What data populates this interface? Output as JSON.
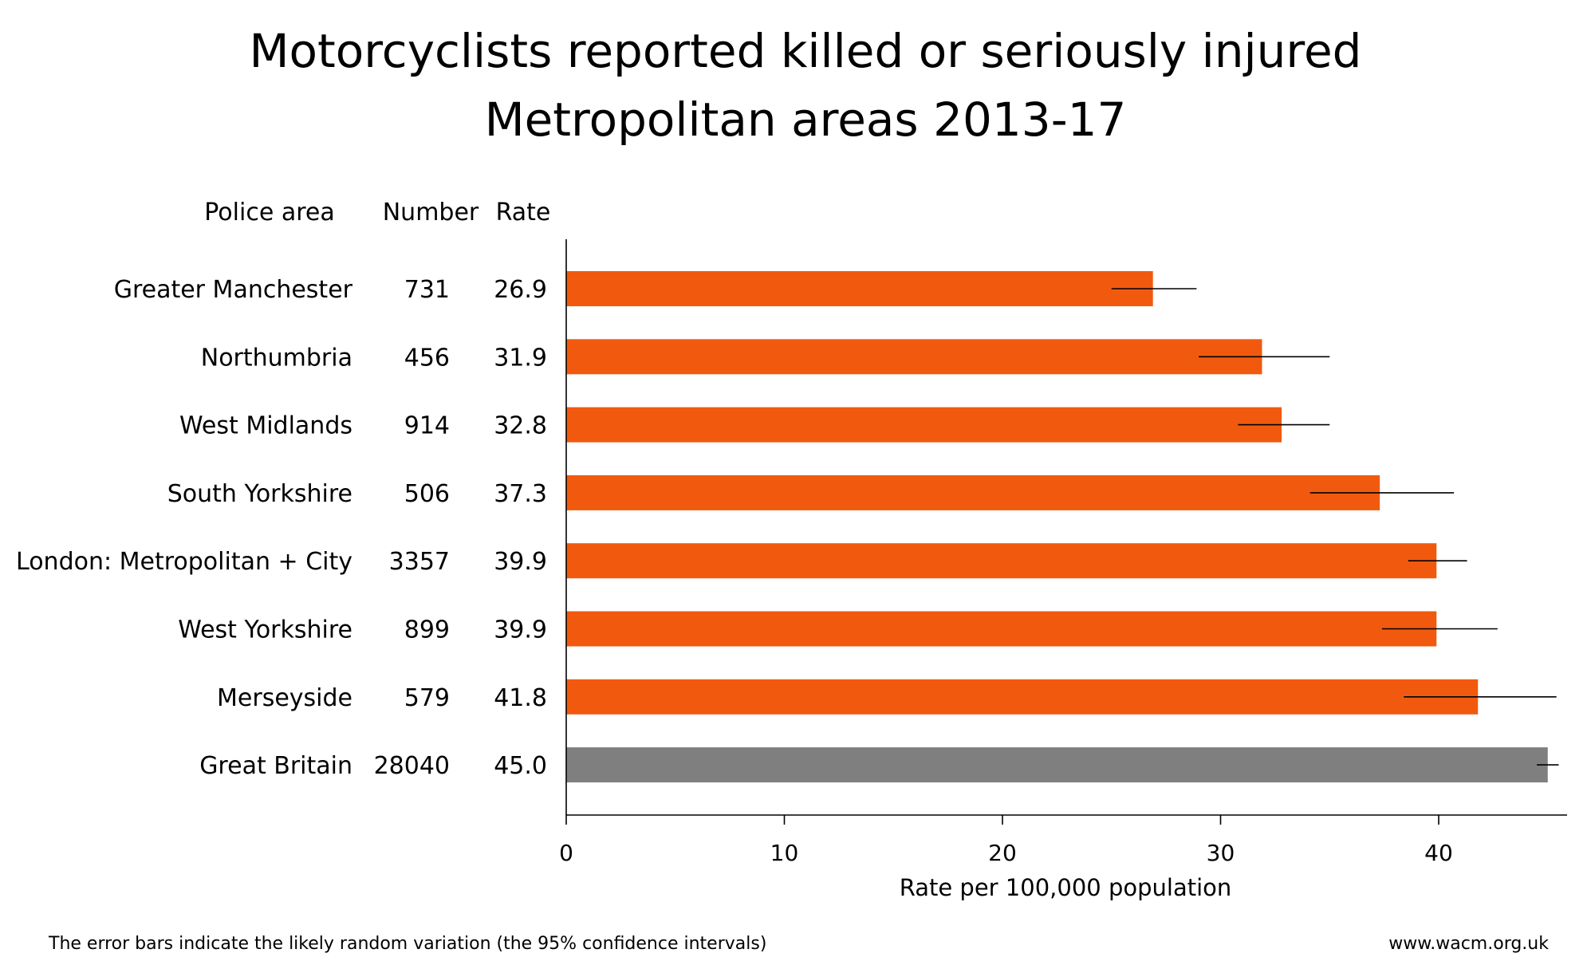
{
  "chart_data": {
    "type": "bar",
    "orientation": "horizontal",
    "title": "Motorcyclists reported killed or seriously injured",
    "subtitle": "Metropolitan areas 2013-17",
    "column_headers": {
      "area": "Police area",
      "number": "Number",
      "rate": "Rate"
    },
    "categories": [
      "Greater Manchester",
      "Northumbria",
      "West Midlands",
      "South Yorkshire",
      "London: Metropolitan + City",
      "West Yorkshire",
      "Merseyside",
      "Great Britain"
    ],
    "numbers": [
      "731",
      "456",
      "914",
      "506",
      "3357",
      "899",
      "579",
      "28040"
    ],
    "rate_labels": [
      "26.9",
      "31.9",
      "32.8",
      "37.3",
      "39.9",
      "39.9",
      "41.8",
      "45.0"
    ],
    "values": [
      26.9,
      31.9,
      32.8,
      37.3,
      39.9,
      39.9,
      41.8,
      45.0
    ],
    "error_low": [
      25.0,
      29.0,
      30.8,
      34.1,
      38.6,
      37.4,
      38.4,
      44.5
    ],
    "error_high": [
      28.9,
      35.0,
      35.0,
      40.7,
      41.3,
      42.7,
      45.4,
      45.5
    ],
    "bar_colors": [
      "#f15a0e",
      "#f15a0e",
      "#f15a0e",
      "#f15a0e",
      "#f15a0e",
      "#f15a0e",
      "#f15a0e",
      "#7f7f7f"
    ],
    "xlabel": "Rate per 100,000 population",
    "ylabel": "",
    "xlim": [
      0,
      46
    ],
    "xticks": [
      0,
      10,
      20,
      30,
      40
    ],
    "grid": false,
    "footnote": "The error bars indicate the likely random variation (the 95% confidence intervals)",
    "source": "www.wacm.org.uk"
  }
}
